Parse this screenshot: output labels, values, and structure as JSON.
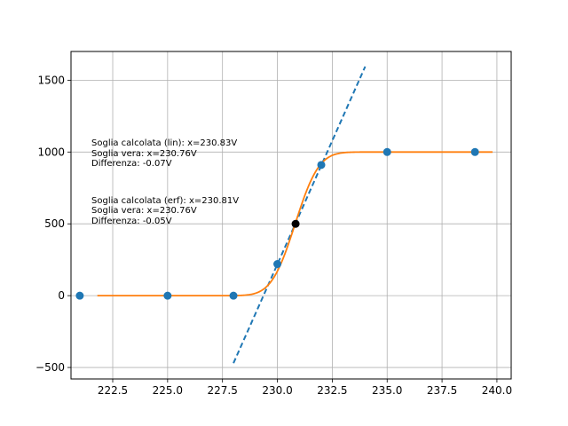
{
  "chart_data": {
    "type": "scatter",
    "grid": true,
    "xlim": [
      220.6,
      240.65
    ],
    "ylim": [
      -580,
      1700
    ],
    "x_ticks": [
      222.5,
      225.0,
      227.5,
      230.0,
      232.5,
      235.0,
      237.5,
      240.0
    ],
    "x_tick_labels": [
      "222.5",
      "225.0",
      "227.5",
      "230.0",
      "232.5",
      "235.0",
      "237.5",
      "240.0"
    ],
    "y_ticks": [
      -500,
      0,
      500,
      1000,
      1500
    ],
    "y_tick_labels": [
      "−500",
      "0",
      "500",
      "1000",
      "1500"
    ],
    "colors": {
      "points": "#1f77b4",
      "linear_fit": "#1f77b4",
      "erf_fit": "#ff7f0e",
      "threshold_point": "#000000",
      "grid": "#b0b0b0"
    },
    "points": {
      "x": [
        221,
        225,
        228,
        230,
        232,
        235,
        239
      ],
      "y": [
        0,
        0,
        0,
        220,
        910,
        1000,
        1000
      ]
    },
    "threshold_point": {
      "x": 230.83,
      "y": 500
    },
    "linear_fit": {
      "x": [
        228.0,
        234.0
      ],
      "y": [
        -470,
        1595
      ]
    },
    "erf_fit": {
      "x0": 230.81,
      "sigma": 0.85,
      "amplitude": 1000,
      "x_range": [
        221.8,
        239.8
      ]
    },
    "annotations": [
      {
        "id": "lin",
        "lines": [
          "Soglia calcolata (lin): x=230.83V",
          "Soglia vera: x=230.76V",
          "Differenza: -0.07V"
        ]
      },
      {
        "id": "erf",
        "lines": [
          "Soglia calcolata (erf): x=230.81V",
          "Soglia vera: x=230.76V",
          "Differenza: -0.05V"
        ]
      }
    ]
  }
}
